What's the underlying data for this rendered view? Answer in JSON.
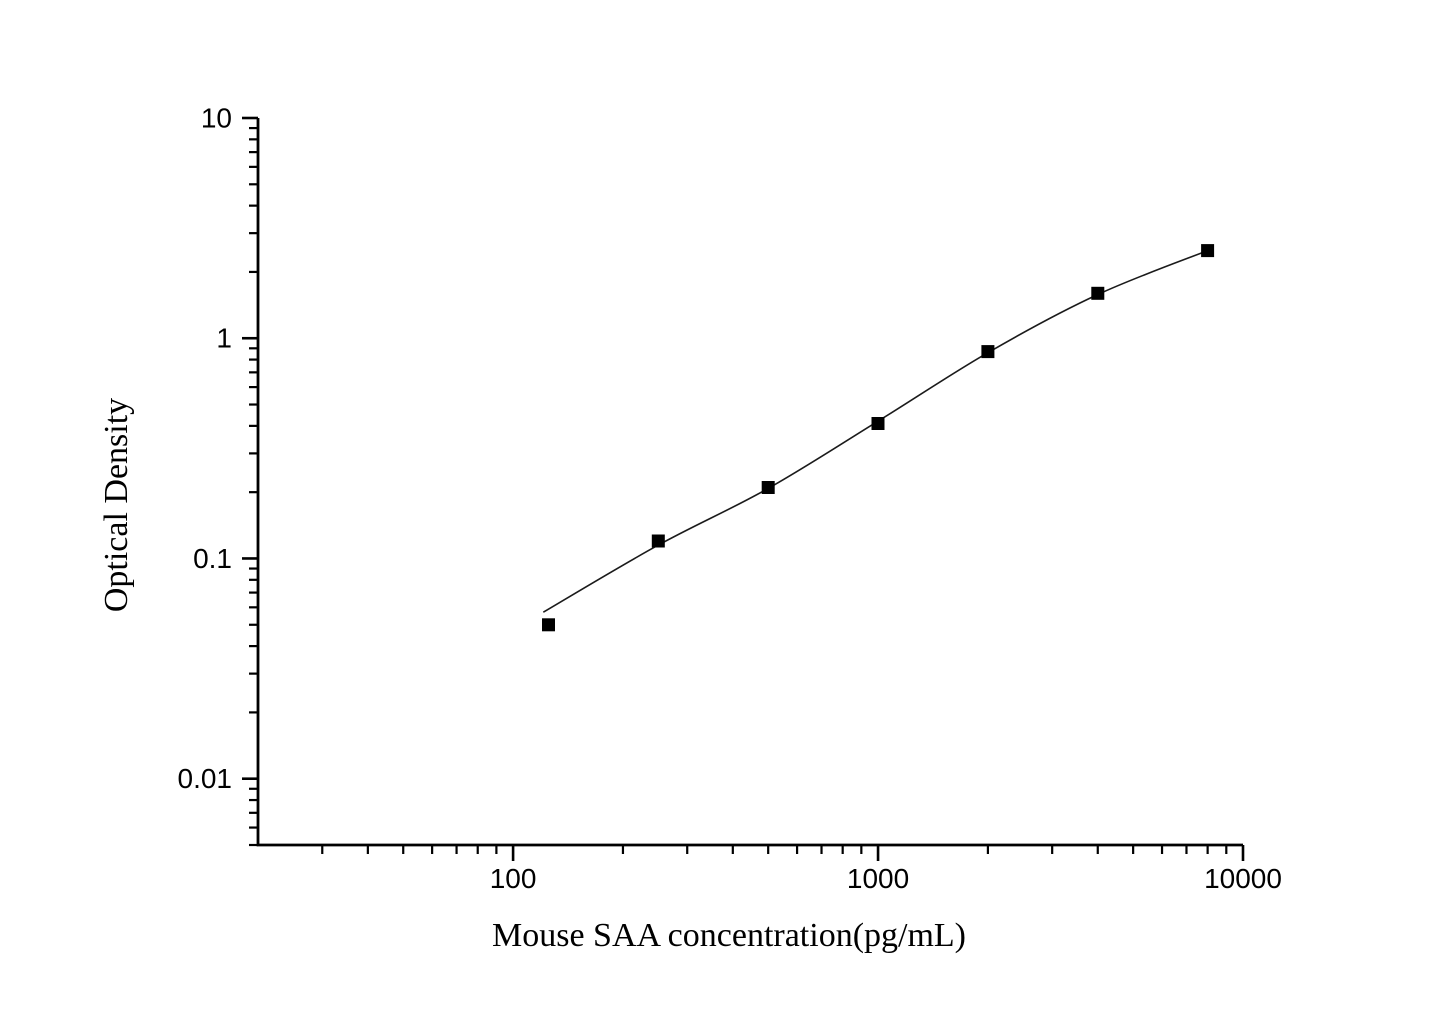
{
  "figure": {
    "background": "#ffffff"
  },
  "chart_data": {
    "type": "scatter",
    "title": "",
    "xlabel": "Mouse SAA concentration(pg/mL)",
    "ylabel": "Optical Density",
    "x_scale": "log",
    "y_scale": "log",
    "xlim": [
      20,
      10000
    ],
    "ylim": [
      0.005,
      10
    ],
    "x_ticks": [
      100,
      1000,
      10000
    ],
    "x_tick_labels": [
      "100",
      "1000",
      "10000"
    ],
    "y_ticks": [
      10,
      1,
      0.1,
      0.01
    ],
    "y_tick_labels": [
      "10",
      "1",
      "0.1",
      "0.01"
    ],
    "grid": false,
    "legend": null,
    "points": [
      {
        "x": 125,
        "y": 0.05
      },
      {
        "x": 250,
        "y": 0.12
      },
      {
        "x": 500,
        "y": 0.21
      },
      {
        "x": 1000,
        "y": 0.41
      },
      {
        "x": 2000,
        "y": 0.87
      },
      {
        "x": 4000,
        "y": 1.6
      },
      {
        "x": 8000,
        "y": 2.5
      }
    ],
    "fit_curve": [
      [
        121,
        0.057
      ],
      [
        250,
        0.115
      ],
      [
        500,
        0.208
      ],
      [
        1000,
        0.42
      ],
      [
        2000,
        0.86
      ],
      [
        4000,
        1.58
      ],
      [
        8000,
        2.5
      ]
    ],
    "marker": {
      "shape": "square",
      "color": "#000000",
      "size": 13
    },
    "line_color": "#1b1b1b",
    "axis_color": "#000000"
  }
}
